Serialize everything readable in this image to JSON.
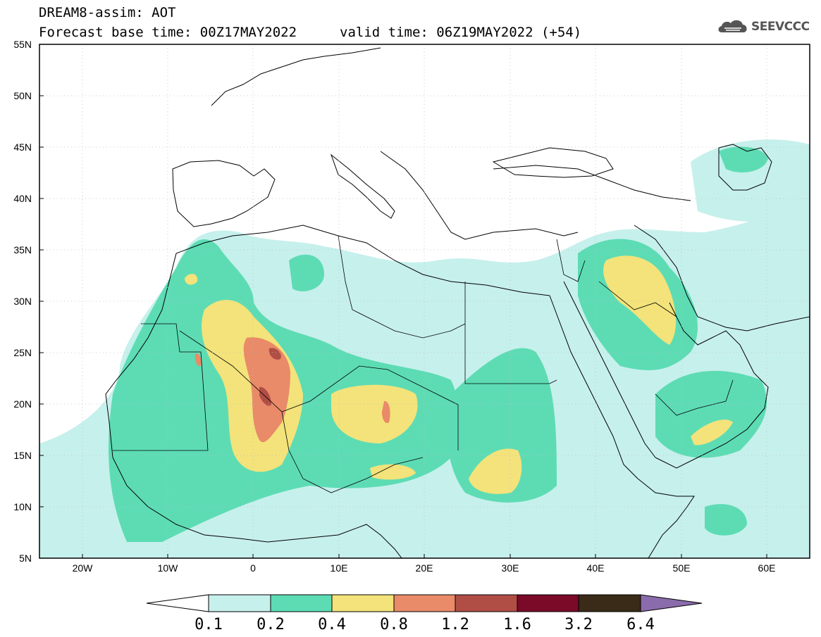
{
  "title": {
    "line1": "DREAM8-assim: AOT",
    "line2": "Forecast base time: 00Z17MAY2022",
    "valid": "valid time: 06Z19MAY2022 (+54)"
  },
  "logo": {
    "text": "SEEVCCC",
    "icon": "cloud-logo-icon"
  },
  "map": {
    "lat_range": [
      5,
      55
    ],
    "lon_range": [
      -25,
      65
    ],
    "lat_labels": [
      "55N",
      "50N",
      "45N",
      "40N",
      "35N",
      "30N",
      "25N",
      "20N",
      "15N",
      "10N",
      "5N"
    ],
    "lon_labels": [
      "20W",
      "10W",
      "0",
      "10E",
      "20E",
      "30E",
      "40E",
      "50E",
      "60E"
    ],
    "grid": "dotted"
  },
  "colorbar": {
    "labels": [
      "0.1",
      "0.2",
      "0.4",
      "0.8",
      "1.2",
      "1.6",
      "3.2",
      "6.4"
    ],
    "colors": [
      "#ffffff",
      "#c6f0ec",
      "#5ddcb4",
      "#f3e37a",
      "#e98a68",
      "#b04e46",
      "#7a0a28",
      "#3a2a18",
      "#8a6cad"
    ]
  },
  "palette": {
    "c1": "#c6f0ec",
    "c2": "#5ddcb4",
    "c3": "#f3e37a",
    "c4": "#e98a68",
    "c5": "#b04e46"
  }
}
